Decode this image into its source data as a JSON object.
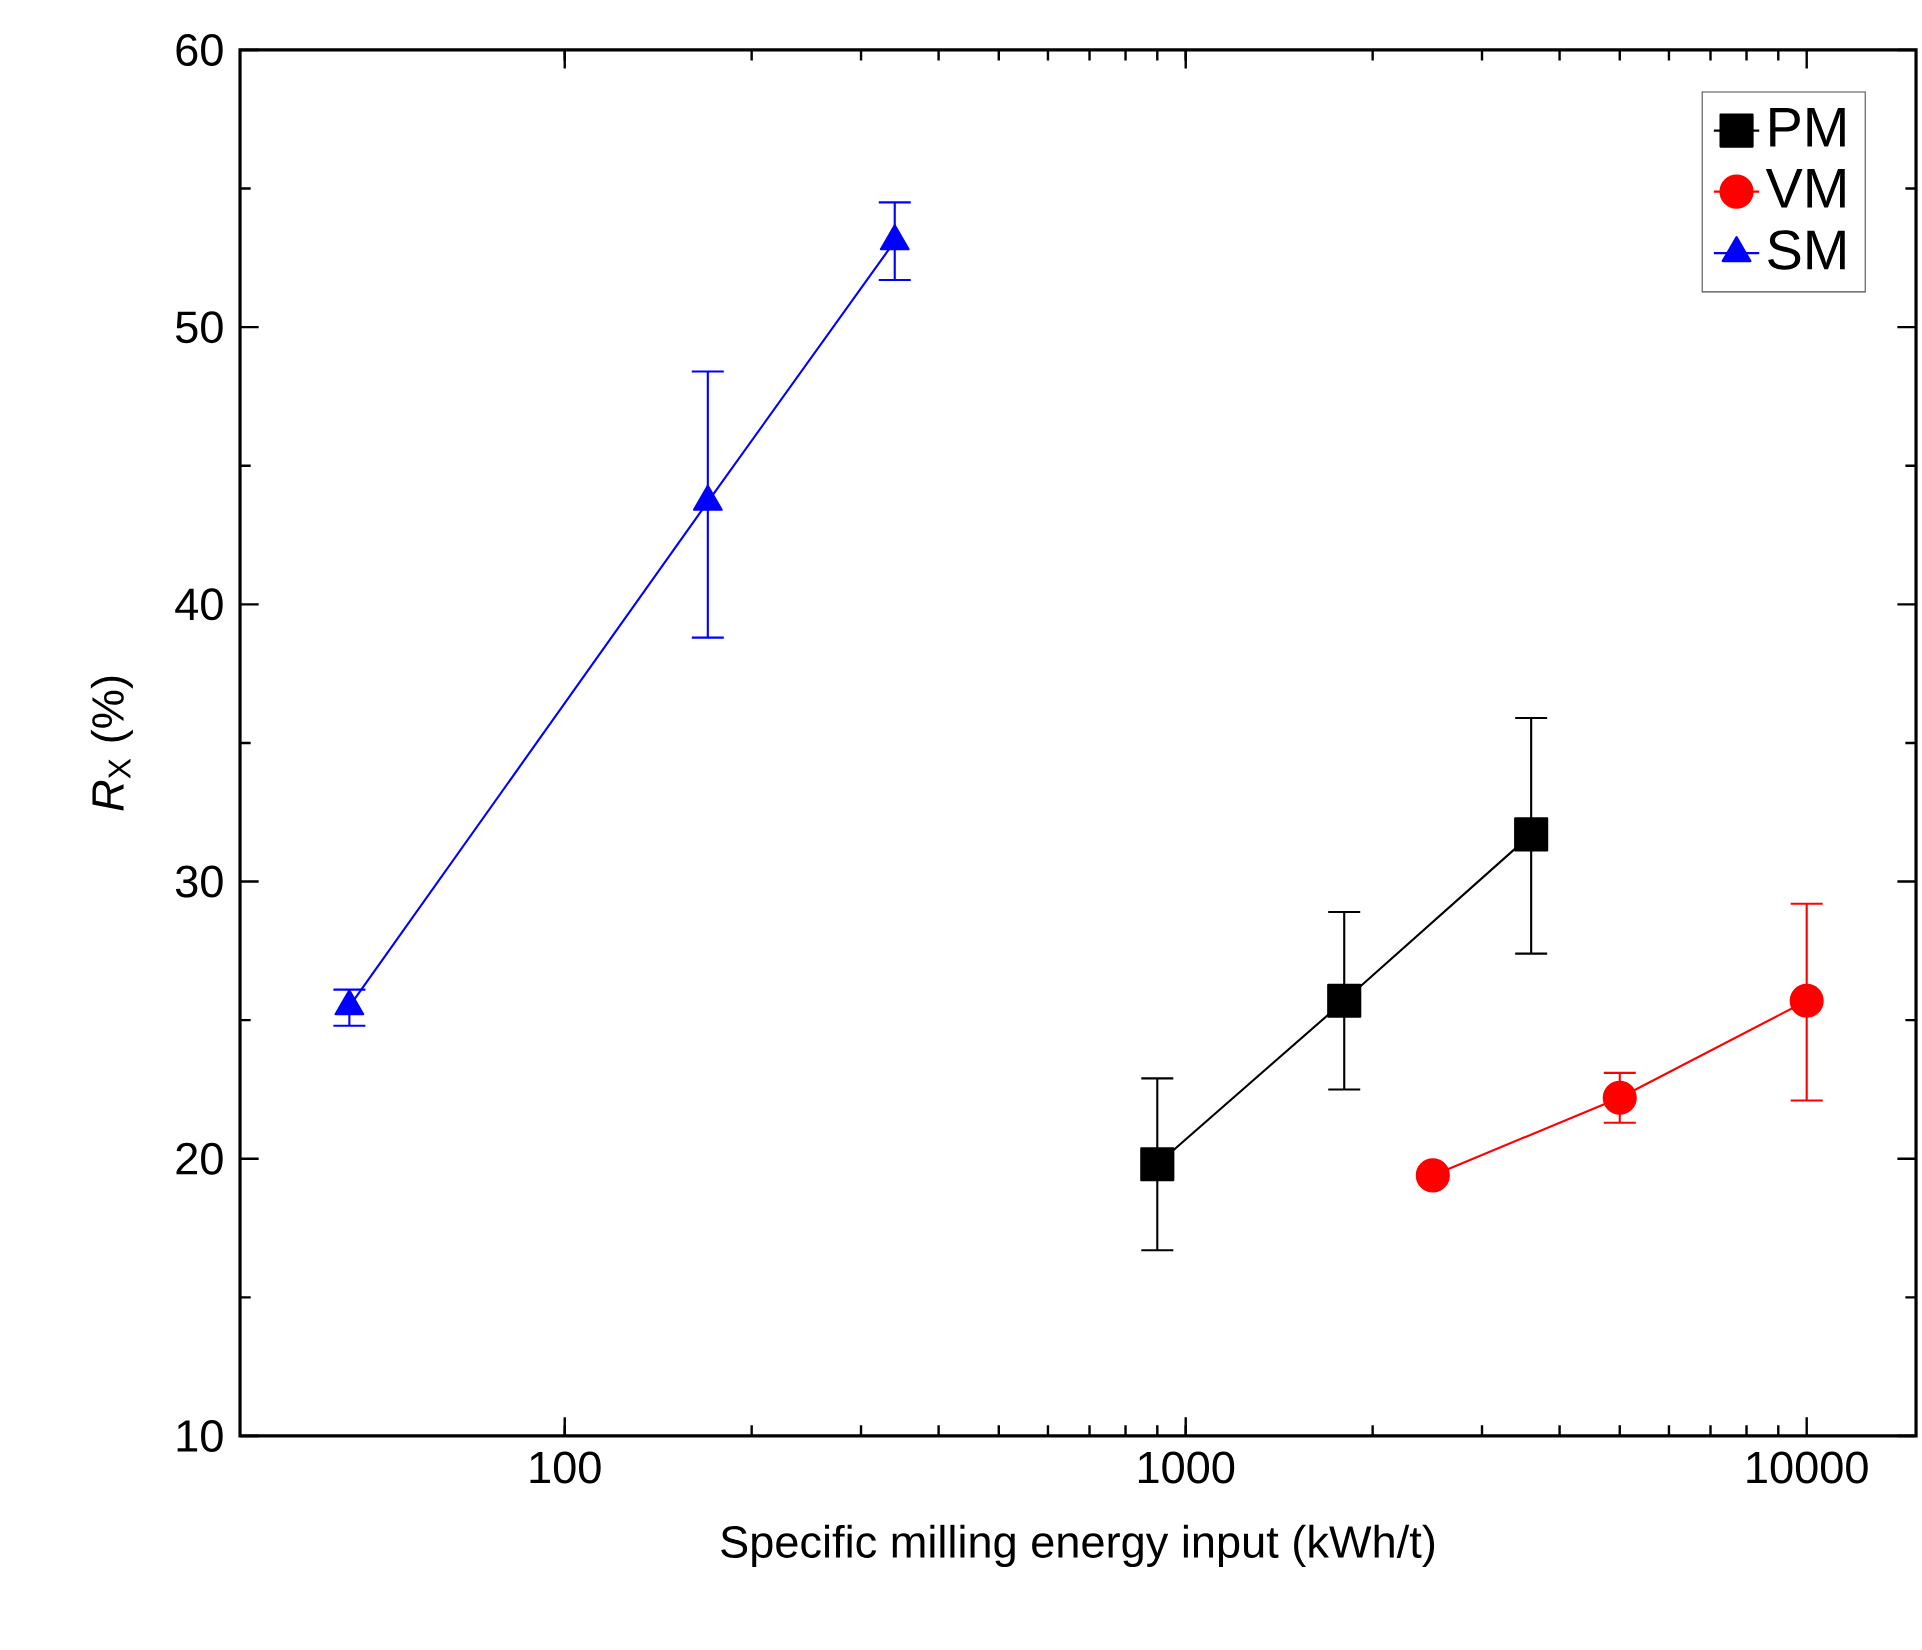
{
  "chart_data": {
    "type": "line",
    "xlabel": "Specific milling energy input (kWh/t)",
    "ylabel": "*R*$_{X}$ (%)",
    "log": "x",
    "xlim": [
      30,
      15000
    ],
    "xticks": [
      100,
      1000,
      10000
    ],
    "ylim": [
      10,
      60
    ],
    "yticks": [
      10,
      20,
      30,
      40,
      50,
      60
    ],
    "legend": "top right",
    "grid": false,
    "series": [
      {
        "name": "PM",
        "color": "#000000",
        "marker": "square",
        "x": [
          900,
          1800,
          3600
        ],
        "values": [
          19.8,
          25.7,
          31.7
        ],
        "errors": [
          [
            16.7,
            22.9
          ],
          [
            22.5,
            28.9
          ],
          [
            27.4,
            35.9
          ]
        ]
      },
      {
        "name": "VM",
        "color": "#ff0000",
        "marker": "circle",
        "x": [
          2500,
          5000,
          10000
        ],
        "values": [
          19.4,
          22.2,
          25.7
        ],
        "errors": [
          null,
          [
            21.3,
            23.1
          ],
          [
            22.1,
            29.2
          ]
        ]
      },
      {
        "name": "SM",
        "color": "#0000ff",
        "marker": "triangle",
        "x": [
          45,
          170,
          340
        ],
        "values": [
          25.5,
          43.7,
          53.1
        ],
        "errors": [
          [
            24.8,
            26.1
          ],
          [
            38.8,
            48.4
          ],
          [
            51.7,
            54.5
          ]
        ]
      }
    ]
  }
}
